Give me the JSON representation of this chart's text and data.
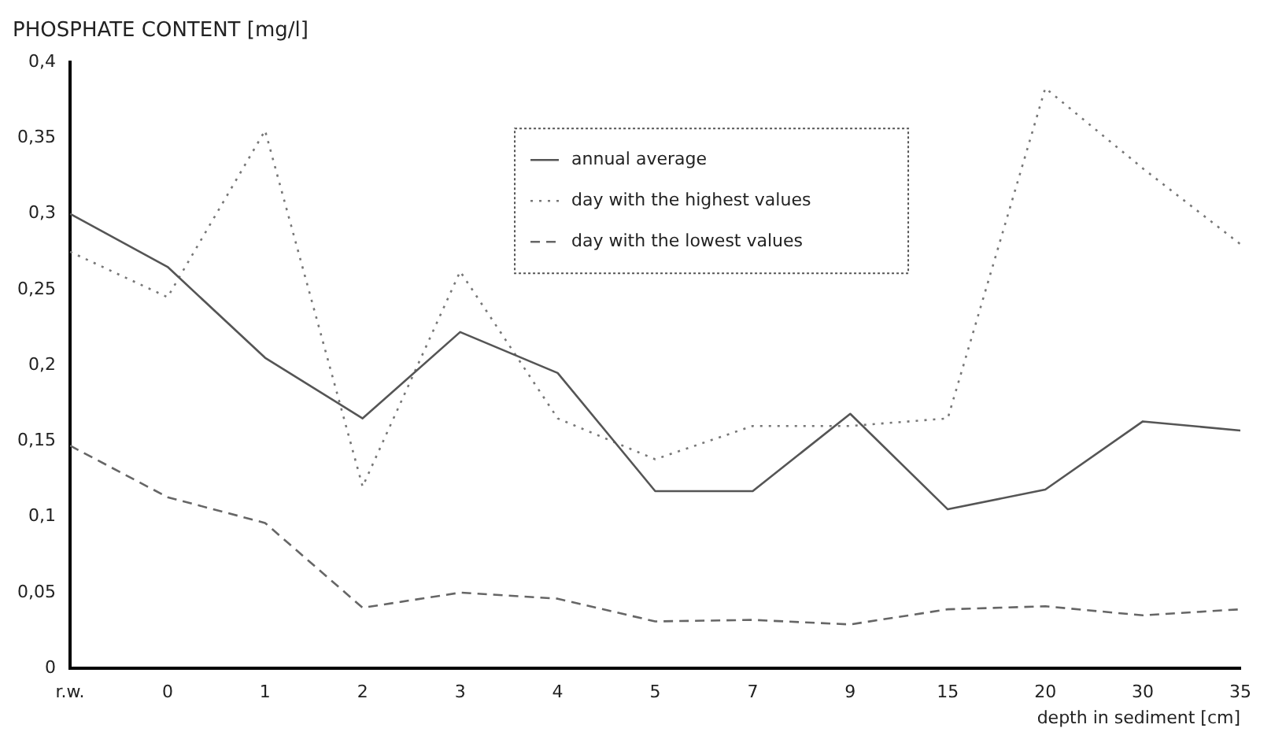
{
  "chart_data": {
    "type": "line",
    "title": "PHOSPHATE CONTENT [mg/l]",
    "xlabel": "depth in sediment [cm]",
    "categories": [
      "r.w.",
      "0",
      "1",
      "2",
      "3",
      "4",
      "5",
      "7",
      "9",
      "15",
      "20",
      "30",
      "35"
    ],
    "series": [
      {
        "name": "annual average",
        "color": "#555555",
        "line_style": "solid",
        "values": [
          0.3,
          0.265,
          0.205,
          0.165,
          0.222,
          0.195,
          0.117,
          0.117,
          0.168,
          0.105,
          0.118,
          0.163,
          0.157
        ]
      },
      {
        "name": "day with the highest values",
        "color": "#777777",
        "line_style": "dotted",
        "values": [
          0.275,
          0.245,
          0.355,
          0.12,
          0.262,
          0.165,
          0.138,
          0.16,
          0.16,
          0.165,
          0.383,
          0.33,
          0.28
        ]
      },
      {
        "name": "day with the lowest values",
        "color": "#666666",
        "line_style": "dashed",
        "values": [
          0.147,
          0.113,
          0.096,
          0.04,
          0.05,
          0.046,
          0.031,
          0.032,
          0.029,
          0.039,
          0.041,
          0.035,
          0.039
        ]
      }
    ],
    "ylim": [
      0,
      0.4
    ],
    "yticks": [
      {
        "value": 0,
        "label": "0"
      },
      {
        "value": 0.05,
        "label": "0,05"
      },
      {
        "value": 0.1,
        "label": "0,1"
      },
      {
        "value": 0.15,
        "label": "0,15"
      },
      {
        "value": 0.2,
        "label": "0,2"
      },
      {
        "value": 0.25,
        "label": "0,25"
      },
      {
        "value": 0.3,
        "label": "0,3"
      },
      {
        "value": 0.35,
        "label": "0,35"
      },
      {
        "value": 0.4,
        "label": "0,4"
      }
    ],
    "grid": false,
    "legend": "top",
    "marker": "none"
  }
}
